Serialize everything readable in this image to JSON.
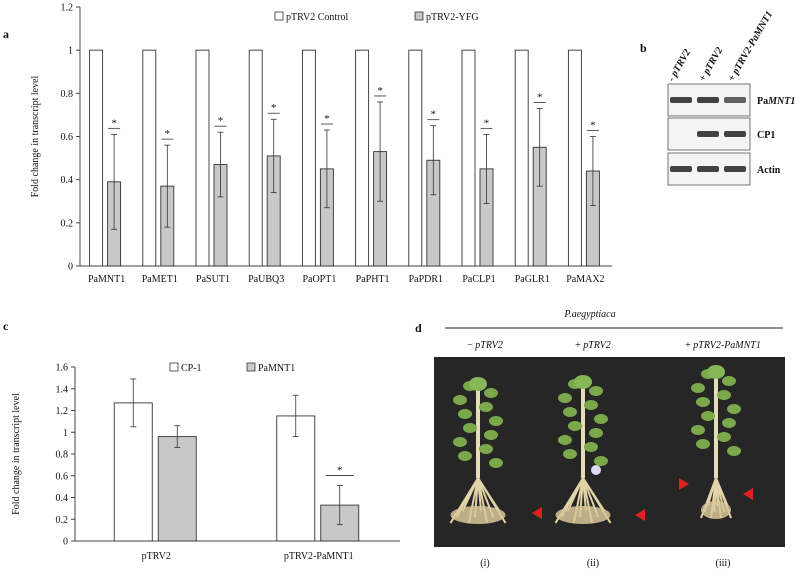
{
  "chart_data": [
    {
      "panel": "a",
      "type": "bar",
      "categories": [
        "PaMNT1",
        "PaMET1",
        "PaSUT1",
        "PaUBQ3",
        "PaOPT1",
        "PaPHT1",
        "PaPDR1",
        "PaCLP1",
        "PaGLR1",
        "PaMAX2"
      ],
      "series": [
        {
          "name": "pTRV2 Control",
          "values": [
            1,
            1,
            1,
            1,
            1,
            1,
            1,
            1,
            1,
            1
          ],
          "errors": [
            0,
            0,
            0,
            0,
            0,
            0,
            0,
            0,
            0,
            0
          ],
          "color": "#ffffff"
        },
        {
          "name": "pTRV2-YFG",
          "values": [
            0.39,
            0.37,
            0.47,
            0.51,
            0.45,
            0.53,
            0.49,
            0.45,
            0.55,
            0.44
          ],
          "errors": [
            0.22,
            0.19,
            0.15,
            0.17,
            0.18,
            0.23,
            0.16,
            0.16,
            0.18,
            0.16
          ],
          "color": "#c8c8c8"
        }
      ],
      "significance": [
        "*",
        "*",
        "*",
        "*",
        "*",
        "*",
        "*",
        "*",
        "*",
        "*"
      ],
      "xlabel": "",
      "ylabel": "Fold change in transcript level",
      "ylim": [
        0,
        1.2
      ],
      "yticks": [
        "0",
        "0.2",
        "0.4",
        "0.6",
        "0.8",
        "1",
        "1.2"
      ],
      "legend": "top",
      "grid": false
    },
    {
      "panel": "c",
      "type": "bar",
      "categories": [
        "pTRV2",
        "pTRV2-PaMNT1"
      ],
      "series": [
        {
          "name": "CP-1",
          "values": [
            1.27,
            1.15
          ],
          "errors": [
            0.22,
            0.19
          ],
          "color": "#ffffff"
        },
        {
          "name": "PaMNT1",
          "values": [
            0.96,
            0.33
          ],
          "errors": [
            0.1,
            0.18
          ],
          "color": "#c8c8c8"
        }
      ],
      "significance": [
        "",
        "*"
      ],
      "xlabel": "",
      "ylabel": "Fold change in transcript level",
      "ylim": [
        0,
        1.6
      ],
      "yticks": [
        "0",
        "0.2",
        "0.4",
        "0.6",
        "0.8",
        "1",
        "1.2",
        "1.4",
        "1.6"
      ],
      "legend": "top",
      "grid": false
    }
  ],
  "panel_labels": {
    "a": "a",
    "b": "b",
    "c": "c",
    "d": "d"
  },
  "gel": {
    "lanes": [
      "- pTRV2",
      "+ pTRV2",
      "+ pTRV2-PaMNT1"
    ],
    "rows": [
      {
        "prefix": "Pa",
        "name": "MNT1",
        "bands": [
          1,
          1,
          0.7
        ]
      },
      {
        "prefix": "",
        "name": "CP1",
        "bands": [
          0,
          1,
          1
        ]
      },
      {
        "prefix": "",
        "name": "Actin",
        "bands": [
          1,
          1,
          1
        ]
      }
    ]
  },
  "photo": {
    "title": "P.aegyptiaca",
    "groups": [
      {
        "sign": "− ",
        "name": "pTRV2"
      },
      {
        "sign": "+ ",
        "name": "pTRV2"
      },
      {
        "sign": "+ ",
        "name": "pTRV2-PaMNT1"
      }
    ],
    "roman": [
      "(i)",
      "(ii)",
      "(iii)"
    ],
    "arrow_color": "#e02020"
  }
}
